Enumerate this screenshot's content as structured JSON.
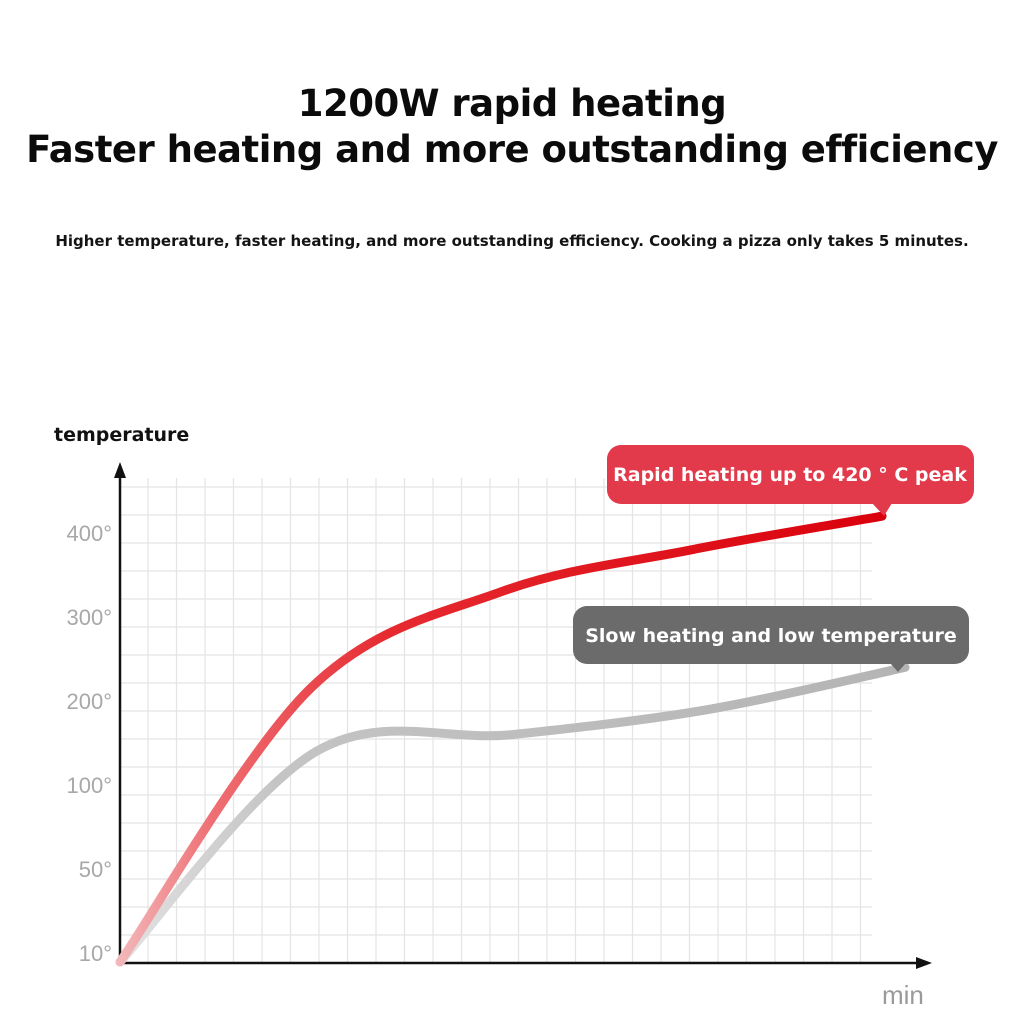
{
  "header": {
    "title_line1": "1200W rapid heating",
    "title_line2": "Faster heating and more outstanding efficiency",
    "subtitle": "Higher temperature, faster heating, and more outstanding efficiency. Cooking a pizza only takes 5 minutes."
  },
  "chart_data": {
    "type": "line",
    "ylabel": "temperature",
    "xlabel": "min",
    "y_ticks": [
      "10°",
      "50°",
      "100°",
      "200°",
      "300°",
      "400°"
    ],
    "grid": true,
    "series": [
      {
        "color": "#e0151c",
        "callout": "Rapid heating up to 420 ° C peak",
        "x": [
          0,
          0.25,
          0.5,
          0.75,
          1.0
        ],
        "y": [
          10,
          215,
          330,
          380,
          420
        ]
      },
      {
        "color": "#b0b0b0",
        "callout": "Slow heating and low temperature",
        "x": [
          0,
          0.25,
          0.5,
          0.75,
          1.0
        ],
        "y": [
          10,
          140,
          160,
          190,
          240
        ]
      }
    ],
    "callout_colors": {
      "red": "#e23a4a",
      "gray": "#6b6b6b"
    }
  }
}
